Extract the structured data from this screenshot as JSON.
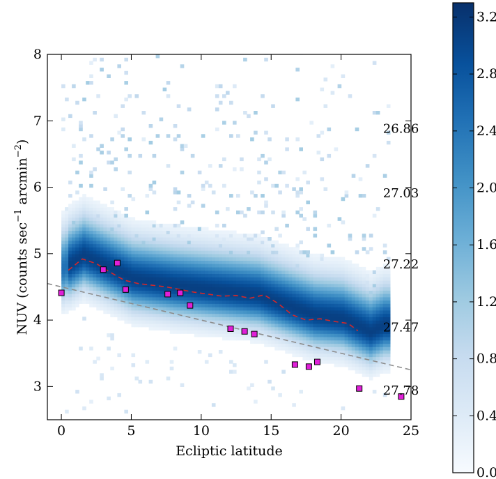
{
  "chart_data": {
    "type": "heatmap",
    "xlabel": "Ecliptic latitude",
    "ylabel": "NUV (counts sec",
    "ylabel_sup1": "−1",
    "ylabel_mid": " arcmin",
    "ylabel_sup2": "−2",
    "ylabel_end": ")",
    "xlim": [
      -1,
      25
    ],
    "ylim": [
      2.5,
      8
    ],
    "xticks": [
      0,
      5,
      10,
      15,
      20,
      25
    ],
    "yticks": [
      3,
      4,
      5,
      6,
      7,
      8
    ],
    "grid": false,
    "colormap": "Blues",
    "colorbar": {
      "range": [
        0.0,
        3.3
      ],
      "ticks": [
        "0.0",
        "0.4",
        "0.8",
        "1.2",
        "1.6",
        "2.0",
        "2.4",
        "2.8",
        "3.2"
      ],
      "tick_values": [
        0.0,
        0.4,
        0.8,
        1.2,
        1.6,
        2.0,
        2.4,
        2.8,
        3.2
      ]
    },
    "density_ridge": {
      "x": [
        0,
        1.5,
        3,
        5,
        8,
        10,
        12,
        14,
        16,
        18,
        20,
        22,
        23
      ],
      "y": [
        4.75,
        4.95,
        4.8,
        4.6,
        4.5,
        4.45,
        4.4,
        4.35,
        4.2,
        4.05,
        4.0,
        3.8,
        3.9
      ]
    },
    "series": [
      {
        "style": "dashed",
        "color": "#d62728",
        "x": [
          0.5,
          1.5,
          2.5,
          3.5,
          4.5,
          5.5,
          7.5,
          9.5,
          11.5,
          12.5,
          13.5,
          14.5,
          15.5,
          16.5,
          17.5,
          18.5,
          19.5,
          20.5,
          21.2
        ],
        "y": [
          4.75,
          4.92,
          4.85,
          4.72,
          4.6,
          4.55,
          4.5,
          4.42,
          4.36,
          4.37,
          4.33,
          4.38,
          4.25,
          4.08,
          4.0,
          4.02,
          3.98,
          3.95,
          3.84
        ]
      },
      {
        "style": "dashed",
        "color": "#8c8c8c",
        "x": [
          -1,
          25
        ],
        "y": [
          4.55,
          3.25
        ]
      },
      {
        "style": "squares",
        "color": "#e020d8",
        "x": [
          0,
          3,
          4,
          4.6,
          7.6,
          8.5,
          9.2,
          12.1,
          13.1,
          13.8,
          16.7,
          17.7,
          18.3,
          21.3,
          24.3
        ],
        "y": [
          4.41,
          4.76,
          4.86,
          4.46,
          4.39,
          4.41,
          4.22,
          3.87,
          3.83,
          3.79,
          3.33,
          3.3,
          3.37,
          2.97,
          2.85
        ]
      }
    ],
    "annotations": [
      {
        "text": "26.86",
        "x": 23.0,
        "y": 6.82
      },
      {
        "text": "27.03",
        "x": 23.0,
        "y": 5.85
      },
      {
        "text": "27.22",
        "x": 23.0,
        "y": 4.78
      },
      {
        "text": "27.47",
        "x": 23.0,
        "y": 3.83
      },
      {
        "text": "27.78",
        "x": 23.0,
        "y": 2.88
      }
    ]
  }
}
